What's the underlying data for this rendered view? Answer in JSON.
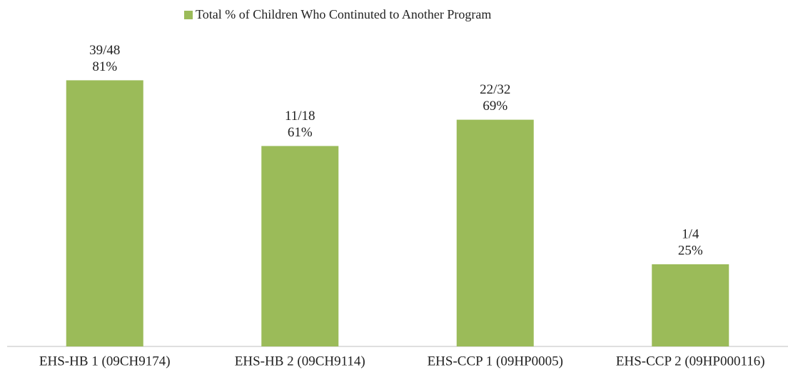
{
  "chart_data": {
    "type": "bar",
    "categories": [
      "EHS-HB 1 (09CH9174)",
      "EHS-HB 2 (09CH9114)",
      "EHS-CCP 1 (09HP0005)",
      "EHS-CCP 2 (09HP000116)"
    ],
    "series": [
      {
        "name": "Total % of Children Who Continuted to Another Program",
        "color": "#9bbb59",
        "values": [
          81,
          61,
          69,
          25
        ],
        "value_labels": [
          "81%",
          "61%",
          "69%",
          "25%"
        ],
        "count_labels": [
          "39/48",
          "11/18",
          "22/32",
          "1/4"
        ]
      }
    ],
    "ylim": [
      0,
      100
    ],
    "legend": "top"
  }
}
